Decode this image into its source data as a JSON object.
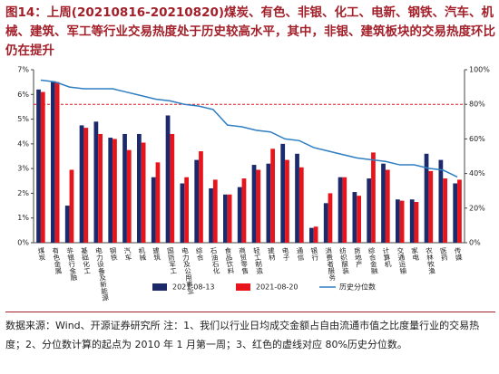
{
  "chart_data": {
    "type": "bar",
    "title": "图14：上周(20210816-20210820)煤炭、有色、非银、化工、电新、钢铁、汽车、机械、建筑、军工等行业交易热度处于历史较高水平，其中，非银、建筑板块的交易热度环比仍在提升",
    "categories": [
      "煤炭",
      "有色金属",
      "非银行金融",
      "基础化工",
      "电力设备及新能源",
      "钢铁",
      "汽车",
      "机械",
      "建筑",
      "国防军工",
      "电力及公用事业",
      "综合",
      "石油石化",
      "食品饮料",
      "商贸零售",
      "轻工制造",
      "建材",
      "电子",
      "通信",
      "银行",
      "消费者服务",
      "纺织服装",
      "房地产",
      "综合金融",
      "计算机",
      "交通运输",
      "家电",
      "农林牧渔",
      "医药",
      "传媒"
    ],
    "series": [
      {
        "name": "2021-08-13",
        "color": "#1c2a6b",
        "values": [
          6.2,
          6.5,
          1.5,
          4.75,
          4.9,
          4.25,
          4.4,
          4.4,
          2.65,
          5.15,
          2.4,
          3.35,
          2.2,
          1.95,
          2.25,
          3.15,
          3.2,
          4.0,
          3.6,
          0.6,
          1.6,
          2.65,
          2.05,
          2.6,
          3.2,
          1.75,
          1.75,
          3.6,
          3.35,
          2.4
        ]
      },
      {
        "name": "2021-08-20",
        "color": "#e8141c",
        "values": [
          6.1,
          6.5,
          2.95,
          4.65,
          4.4,
          4.2,
          3.75,
          4.05,
          3.25,
          4.4,
          2.65,
          3.7,
          2.55,
          1.95,
          2.6,
          2.95,
          3.8,
          3.35,
          3.05,
          0.65,
          2.0,
          2.65,
          1.9,
          3.65,
          2.95,
          1.7,
          1.65,
          2.9,
          2.6,
          2.55
        ]
      },
      {
        "name": "历史分位数",
        "color": "#2e7ec2",
        "type": "line",
        "axis": "y2",
        "values": [
          94,
          93,
          90,
          89,
          89,
          89,
          87,
          85,
          83,
          82,
          80,
          79,
          77,
          68,
          67,
          65,
          64,
          60,
          59,
          55,
          53,
          51,
          49,
          48,
          47,
          45,
          45,
          43,
          42,
          38
        ]
      }
    ],
    "ylim": [
      0,
      7
    ],
    "yticks": [
      {
        "value": 0,
        "label": "0%"
      },
      {
        "value": 1,
        "label": "1%"
      },
      {
        "value": 2,
        "label": "2%"
      },
      {
        "value": 3,
        "label": "3%"
      },
      {
        "value": 4,
        "label": "4%"
      },
      {
        "value": 5,
        "label": "5%"
      },
      {
        "value": 6,
        "label": "6%"
      },
      {
        "value": 7,
        "label": "7%"
      }
    ],
    "y2lim": [
      0,
      100
    ],
    "y2ticks": [
      {
        "value": 0,
        "label": "0%"
      },
      {
        "value": 20,
        "label": "20%"
      },
      {
        "value": 40,
        "label": "40%"
      },
      {
        "value": 60,
        "label": "60%"
      },
      {
        "value": 80,
        "label": "80%"
      },
      {
        "value": 100,
        "label": "100%"
      }
    ],
    "reference_line": {
      "value": 80,
      "axis": "y2",
      "color": "#e8141c"
    },
    "legend": "bottom",
    "note": "数据来源：Wind、开源证券研究所 注：1、我们以行业日均成交金额占自由流通市值之比度量行业的交易热度；2、分位数计算的起点为 2010 年 1 月第一周；3、红色的虚线对应 80%历史分位数。"
  }
}
